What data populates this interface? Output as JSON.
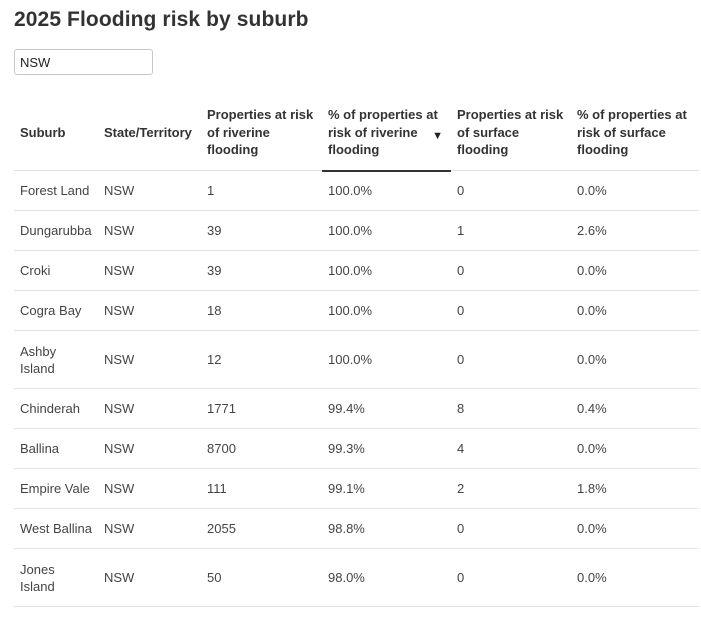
{
  "title": "2025 Flooding risk by suburb",
  "filter": {
    "value": "NSW"
  },
  "table": {
    "headers": [
      "Suburb",
      "State/Territory",
      "Properties at risk of riverine flooding",
      "% of properties at risk of riverine flooding",
      "Properties at risk of surface flooding",
      "% of properties at risk of surface flooding"
    ],
    "sort_indicator": "▼",
    "rows": [
      {
        "suburb": "Forest Land",
        "state": "NSW",
        "riverine": "1",
        "riverine_pct": "100.0%",
        "surface": "0",
        "surface_pct": "0.0%"
      },
      {
        "suburb": "Dungarubba",
        "state": "NSW",
        "riverine": "39",
        "riverine_pct": "100.0%",
        "surface": "1",
        "surface_pct": "2.6%"
      },
      {
        "suburb": "Croki",
        "state": "NSW",
        "riverine": "39",
        "riverine_pct": "100.0%",
        "surface": "0",
        "surface_pct": "0.0%"
      },
      {
        "suburb": "Cogra Bay",
        "state": "NSW",
        "riverine": "18",
        "riverine_pct": "100.0%",
        "surface": "0",
        "surface_pct": "0.0%"
      },
      {
        "suburb": "Ashby Island",
        "state": "NSW",
        "riverine": "12",
        "riverine_pct": "100.0%",
        "surface": "0",
        "surface_pct": "0.0%"
      },
      {
        "suburb": "Chinderah",
        "state": "NSW",
        "riverine": "1771",
        "riverine_pct": "99.4%",
        "surface": "8",
        "surface_pct": "0.4%"
      },
      {
        "suburb": "Ballina",
        "state": "NSW",
        "riverine": "8700",
        "riverine_pct": "99.3%",
        "surface": "4",
        "surface_pct": "0.0%"
      },
      {
        "suburb": "Empire Vale",
        "state": "NSW",
        "riverine": "111",
        "riverine_pct": "99.1%",
        "surface": "2",
        "surface_pct": "1.8%"
      },
      {
        "suburb": "West Ballina",
        "state": "NSW",
        "riverine": "2055",
        "riverine_pct": "98.8%",
        "surface": "0",
        "surface_pct": "0.0%"
      },
      {
        "suburb": "Jones Island",
        "state": "NSW",
        "riverine": "50",
        "riverine_pct": "98.0%",
        "surface": "0",
        "surface_pct": "0.0%"
      }
    ]
  }
}
